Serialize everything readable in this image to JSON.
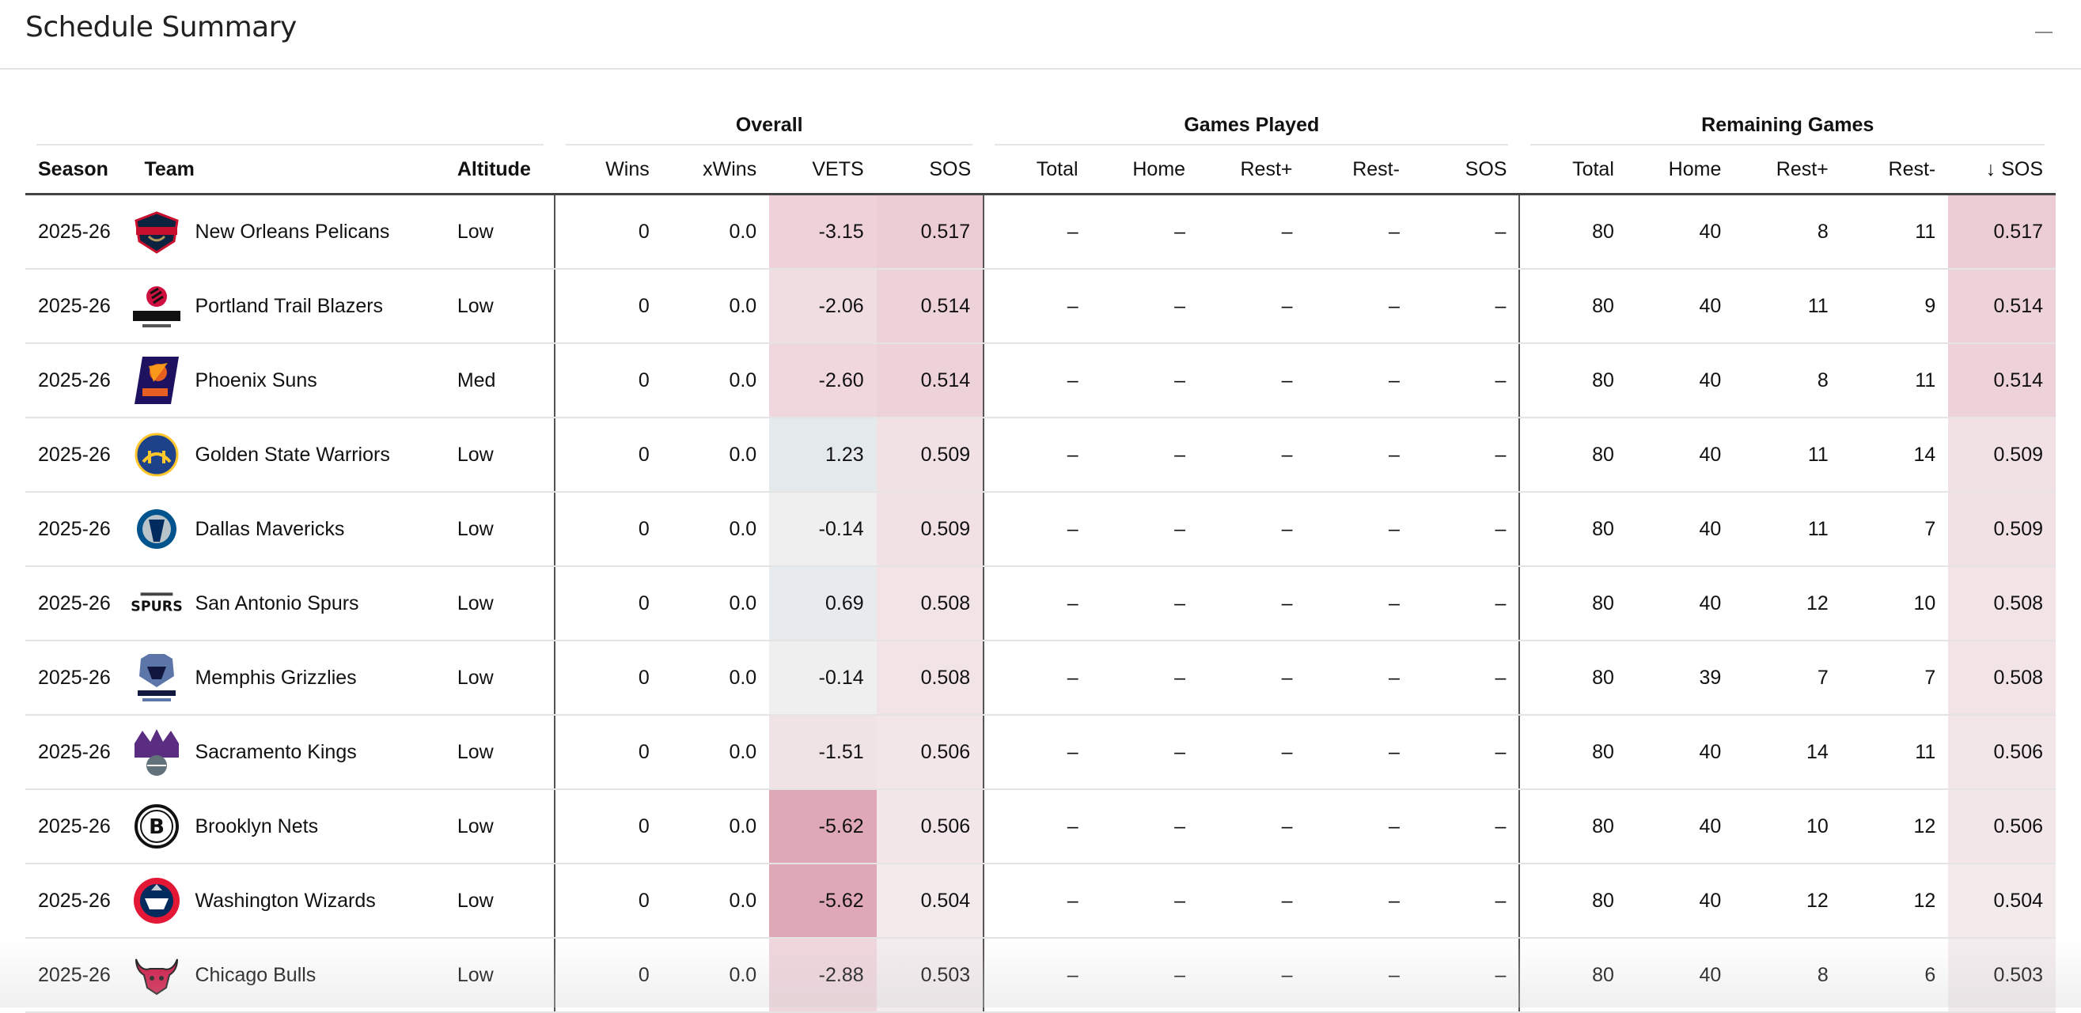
{
  "panel": {
    "title": "Schedule Summary"
  },
  "groups": {
    "overall": "Overall",
    "played": "Games Played",
    "remaining": "Remaining Games"
  },
  "columns": {
    "season": "Season",
    "team": "Team",
    "altitude": "Altitude",
    "wins": "Wins",
    "xwins": "xWins",
    "vets": "VETS",
    "sos": "SOS",
    "gp_total": "Total",
    "gp_home": "Home",
    "gp_rest_plus": "Rest+",
    "gp_rest_minus": "Rest-",
    "gp_sos": "SOS",
    "rg_total": "Total",
    "rg_home": "Home",
    "rg_rest_plus": "Rest+",
    "rg_rest_minus": "Rest-",
    "rg_sos": "SOS",
    "sort_arrow": "↓"
  },
  "rows": [
    {
      "season": "2025-26",
      "team": "New Orleans Pelicans",
      "altitude": "Low",
      "wins": "0",
      "xwins": "0.0",
      "vets": "-3.15",
      "sos": "0.517",
      "gp_total": "–",
      "gp_home": "–",
      "gp_rest_plus": "–",
      "gp_rest_minus": "–",
      "gp_sos": "–",
      "rg_total": "80",
      "rg_home": "40",
      "rg_rest_plus": "8",
      "rg_rest_minus": "11",
      "rg_sos": "0.517",
      "logo": "pelicans-logo-icon",
      "vets_color": "#eed1d9",
      "sos_color": "#edcdd5"
    },
    {
      "season": "2025-26",
      "team": "Portland Trail Blazers",
      "altitude": "Low",
      "wins": "0",
      "xwins": "0.0",
      "vets": "-2.06",
      "sos": "0.514",
      "gp_total": "–",
      "gp_home": "–",
      "gp_rest_plus": "–",
      "gp_rest_minus": "–",
      "gp_sos": "–",
      "rg_total": "80",
      "rg_home": "40",
      "rg_rest_plus": "11",
      "rg_rest_minus": "9",
      "rg_sos": "0.514",
      "logo": "trail-blazers-logo-icon",
      "vets_color": "#f0dde2",
      "sos_color": "#eed2d9"
    },
    {
      "season": "2025-26",
      "team": "Phoenix Suns",
      "altitude": "Med",
      "wins": "0",
      "xwins": "0.0",
      "vets": "-2.60",
      "sos": "0.514",
      "gp_total": "–",
      "gp_home": "–",
      "gp_rest_plus": "–",
      "gp_rest_minus": "–",
      "gp_sos": "–",
      "rg_total": "80",
      "rg_home": "40",
      "rg_rest_plus": "8",
      "rg_rest_minus": "11",
      "rg_sos": "0.514",
      "logo": "suns-logo-icon",
      "vets_color": "#efd7dd",
      "sos_color": "#eed2d9"
    },
    {
      "season": "2025-26",
      "team": "Golden State Warriors",
      "altitude": "Low",
      "wins": "0",
      "xwins": "0.0",
      "vets": "1.23",
      "sos": "0.509",
      "gp_total": "–",
      "gp_home": "–",
      "gp_rest_plus": "–",
      "gp_rest_minus": "–",
      "gp_sos": "–",
      "rg_total": "80",
      "rg_home": "40",
      "rg_rest_plus": "11",
      "rg_rest_minus": "14",
      "rg_sos": "0.509",
      "logo": "warriors-logo-icon",
      "vets_color": "#e4e9ec",
      "sos_color": "#f1e1e5"
    },
    {
      "season": "2025-26",
      "team": "Dallas Mavericks",
      "altitude": "Low",
      "wins": "0",
      "xwins": "0.0",
      "vets": "-0.14",
      "sos": "0.509",
      "gp_total": "–",
      "gp_home": "–",
      "gp_rest_plus": "–",
      "gp_rest_minus": "–",
      "gp_sos": "–",
      "rg_total": "80",
      "rg_home": "40",
      "rg_rest_plus": "11",
      "rg_rest_minus": "7",
      "rg_sos": "0.509",
      "logo": "mavericks-logo-icon",
      "vets_color": "#efefef",
      "sos_color": "#f1e1e5"
    },
    {
      "season": "2025-26",
      "team": "San Antonio Spurs",
      "altitude": "Low",
      "wins": "0",
      "xwins": "0.0",
      "vets": "0.69",
      "sos": "0.508",
      "gp_total": "–",
      "gp_home": "–",
      "gp_rest_plus": "–",
      "gp_rest_minus": "–",
      "gp_sos": "–",
      "rg_total": "80",
      "rg_home": "40",
      "rg_rest_plus": "12",
      "rg_rest_minus": "10",
      "rg_sos": "0.508",
      "logo": "spurs-logo-icon",
      "vets_color": "#e8ebed",
      "sos_color": "#f1e3e6"
    },
    {
      "season": "2025-26",
      "team": "Memphis Grizzlies",
      "altitude": "Low",
      "wins": "0",
      "xwins": "0.0",
      "vets": "-0.14",
      "sos": "0.508",
      "gp_total": "–",
      "gp_home": "–",
      "gp_rest_plus": "–",
      "gp_rest_minus": "–",
      "gp_sos": "–",
      "rg_total": "80",
      "rg_home": "39",
      "rg_rest_plus": "7",
      "rg_rest_minus": "7",
      "rg_sos": "0.508",
      "logo": "grizzlies-logo-icon",
      "vets_color": "#efefef",
      "sos_color": "#f1e3e6"
    },
    {
      "season": "2025-26",
      "team": "Sacramento Kings",
      "altitude": "Low",
      "wins": "0",
      "xwins": "0.0",
      "vets": "-1.51",
      "sos": "0.506",
      "gp_total": "–",
      "gp_home": "–",
      "gp_rest_plus": "–",
      "gp_rest_minus": "–",
      "gp_sos": "–",
      "rg_total": "80",
      "rg_home": "40",
      "rg_rest_plus": "14",
      "rg_rest_minus": "11",
      "rg_sos": "0.506",
      "logo": "kings-logo-icon",
      "vets_color": "#f0e3e6",
      "sos_color": "#f2e6e9"
    },
    {
      "season": "2025-26",
      "team": "Brooklyn Nets",
      "altitude": "Low",
      "wins": "0",
      "xwins": "0.0",
      "vets": "-5.62",
      "sos": "0.506",
      "gp_total": "–",
      "gp_home": "–",
      "gp_rest_plus": "–",
      "gp_rest_minus": "–",
      "gp_sos": "–",
      "rg_total": "80",
      "rg_home": "40",
      "rg_rest_plus": "10",
      "rg_rest_minus": "12",
      "rg_sos": "0.506",
      "logo": "nets-logo-icon",
      "vets_color": "#dea8b6",
      "sos_color": "#f2e6e9"
    },
    {
      "season": "2025-26",
      "team": "Washington Wizards",
      "altitude": "Low",
      "wins": "0",
      "xwins": "0.0",
      "vets": "-5.62",
      "sos": "0.504",
      "gp_total": "–",
      "gp_home": "–",
      "gp_rest_plus": "–",
      "gp_rest_minus": "–",
      "gp_sos": "–",
      "rg_total": "80",
      "rg_home": "40",
      "rg_rest_plus": "12",
      "rg_rest_minus": "12",
      "rg_sos": "0.504",
      "logo": "wizards-logo-icon",
      "vets_color": "#dea8b6",
      "sos_color": "#f3eaec"
    },
    {
      "season": "2025-26",
      "team": "Chicago Bulls",
      "altitude": "Low",
      "wins": "0",
      "xwins": "0.0",
      "vets": "-2.88",
      "sos": "0.503",
      "gp_total": "–",
      "gp_home": "–",
      "gp_rest_plus": "–",
      "gp_rest_minus": "–",
      "gp_sos": "–",
      "rg_total": "80",
      "rg_home": "40",
      "rg_rest_plus": "8",
      "rg_rest_minus": "6",
      "rg_sos": "0.503",
      "logo": "bulls-logo-icon",
      "vets_color": "#efd5dc",
      "sos_color": "#f3ecee"
    }
  ]
}
